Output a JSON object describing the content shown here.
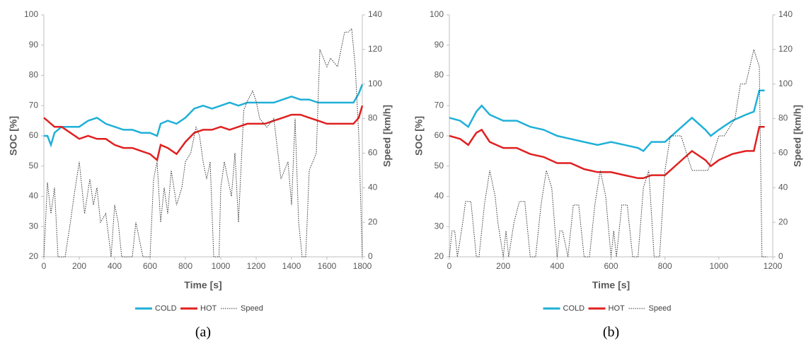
{
  "chart_data": [
    {
      "type": "line",
      "label": "(a)",
      "xlabel": "Time [s]",
      "ylabel": "SOC [%]",
      "y2label": "Speed [km/h]",
      "xlim": [
        0,
        1800
      ],
      "xticks": [
        0,
        200,
        400,
        600,
        800,
        1000,
        1200,
        1400,
        1600,
        1800
      ],
      "ylim": [
        20,
        100
      ],
      "yticks": [
        20,
        30,
        40,
        50,
        60,
        70,
        80,
        90,
        100
      ],
      "y2lim": [
        0,
        140
      ],
      "y2ticks": [
        0,
        20,
        40,
        60,
        80,
        100,
        120,
        140
      ],
      "series": [
        {
          "name": "COLD",
          "color": "#1fb0d8",
          "dashed": false,
          "x": [
            0,
            20,
            40,
            60,
            80,
            100,
            150,
            200,
            250,
            300,
            350,
            400,
            450,
            500,
            550,
            600,
            640,
            660,
            700,
            750,
            800,
            850,
            900,
            950,
            1000,
            1050,
            1100,
            1150,
            1200,
            1250,
            1300,
            1350,
            1400,
            1450,
            1500,
            1550,
            1600,
            1650,
            1700,
            1750,
            1780,
            1800
          ],
          "values": [
            60,
            60,
            57,
            61,
            62,
            63,
            63,
            63,
            65,
            66,
            64,
            63,
            62,
            62,
            61,
            61,
            60,
            64,
            65,
            64,
            66,
            69,
            70,
            69,
            70,
            71,
            70,
            71,
            71,
            71,
            71,
            72,
            73,
            72,
            72,
            71,
            71,
            71,
            71,
            71,
            74,
            77
          ]
        },
        {
          "name": "HOT",
          "color": "#e02020",
          "dashed": false,
          "x": [
            0,
            20,
            40,
            60,
            80,
            100,
            150,
            200,
            250,
            300,
            350,
            400,
            450,
            500,
            550,
            600,
            640,
            660,
            700,
            750,
            800,
            850,
            900,
            950,
            1000,
            1050,
            1100,
            1150,
            1200,
            1250,
            1300,
            1350,
            1400,
            1450,
            1500,
            1550,
            1600,
            1650,
            1700,
            1750,
            1780,
            1800
          ],
          "values": [
            66,
            65,
            64,
            63,
            63,
            63,
            61,
            59,
            60,
            59,
            59,
            57,
            56,
            56,
            55,
            54,
            52,
            57,
            56,
            54,
            58,
            61,
            62,
            62,
            63,
            62,
            63,
            64,
            64,
            64,
            65,
            66,
            67,
            67,
            66,
            65,
            64,
            64,
            64,
            64,
            66,
            70
          ]
        },
        {
          "name": "Speed",
          "color": "#333333",
          "dashed": true,
          "axis": "y2",
          "x": [
            0,
            20,
            40,
            60,
            80,
            100,
            120,
            150,
            170,
            200,
            230,
            260,
            280,
            300,
            320,
            350,
            380,
            400,
            420,
            440,
            460,
            500,
            520,
            540,
            560,
            580,
            600,
            620,
            640,
            660,
            680,
            700,
            720,
            750,
            780,
            800,
            830,
            860,
            880,
            900,
            920,
            940,
            960,
            990,
            1000,
            1020,
            1060,
            1080,
            1100,
            1130,
            1150,
            1180,
            1200,
            1220,
            1260,
            1300,
            1340,
            1380,
            1400,
            1420,
            1440,
            1460,
            1480,
            1500,
            1540,
            1560,
            1600,
            1620,
            1660,
            1700,
            1720,
            1740,
            1760,
            1780,
            1800
          ],
          "values": [
            0,
            43,
            25,
            40,
            0,
            0,
            0,
            20,
            35,
            55,
            25,
            45,
            30,
            40,
            20,
            25,
            0,
            30,
            20,
            0,
            0,
            0,
            20,
            10,
            0,
            0,
            0,
            45,
            55,
            20,
            40,
            25,
            50,
            30,
            40,
            55,
            60,
            75,
            70,
            55,
            45,
            55,
            0,
            0,
            40,
            55,
            35,
            60,
            20,
            85,
            90,
            96,
            90,
            80,
            75,
            80,
            45,
            55,
            30,
            80,
            20,
            0,
            0,
            50,
            60,
            120,
            110,
            115,
            110,
            130,
            130,
            132,
            110,
            70,
            0
          ]
        }
      ]
    },
    {
      "type": "line",
      "label": "(b)",
      "xlabel": "Time [s]",
      "ylabel": "SOC [%]",
      "y2label": "Speed [km/h]",
      "xlim": [
        0,
        1200
      ],
      "xticks": [
        0,
        200,
        400,
        600,
        800,
        1000,
        1200
      ],
      "ylim": [
        20,
        100
      ],
      "yticks": [
        20,
        30,
        40,
        50,
        60,
        70,
        80,
        90,
        100
      ],
      "y2lim": [
        0,
        140
      ],
      "y2ticks": [
        0,
        20,
        40,
        60,
        80,
        100,
        120,
        140
      ],
      "series": [
        {
          "name": "COLD",
          "color": "#1fb0d8",
          "dashed": false,
          "x": [
            0,
            40,
            70,
            100,
            120,
            150,
            200,
            250,
            300,
            350,
            400,
            450,
            500,
            550,
            600,
            650,
            700,
            720,
            750,
            800,
            850,
            900,
            950,
            970,
            1000,
            1050,
            1100,
            1130,
            1150,
            1170
          ],
          "values": [
            66,
            65,
            63,
            68,
            70,
            67,
            65,
            65,
            63,
            62,
            60,
            59,
            58,
            57,
            58,
            57,
            56,
            55,
            58,
            58,
            62,
            66,
            62,
            60,
            62,
            65,
            67,
            68,
            75,
            75
          ]
        },
        {
          "name": "HOT",
          "color": "#e02020",
          "dashed": false,
          "x": [
            0,
            40,
            70,
            100,
            120,
            150,
            200,
            250,
            300,
            350,
            400,
            450,
            500,
            550,
            600,
            650,
            700,
            720,
            750,
            800,
            850,
            900,
            950,
            970,
            1000,
            1050,
            1100,
            1130,
            1150,
            1170
          ],
          "values": [
            60,
            59,
            57,
            61,
            62,
            58,
            56,
            56,
            54,
            53,
            51,
            51,
            49,
            48,
            48,
            47,
            46,
            46,
            47,
            47,
            51,
            55,
            52,
            50,
            52,
            54,
            55,
            55,
            63,
            63
          ]
        },
        {
          "name": "Speed",
          "color": "#333333",
          "dashed": true,
          "axis": "y2",
          "x": [
            0,
            10,
            20,
            30,
            50,
            60,
            80,
            100,
            110,
            130,
            150,
            170,
            180,
            200,
            210,
            220,
            240,
            260,
            280,
            300,
            320,
            340,
            360,
            380,
            400,
            410,
            420,
            440,
            460,
            480,
            500,
            520,
            540,
            560,
            580,
            600,
            610,
            620,
            640,
            660,
            680,
            700,
            720,
            740,
            760,
            780,
            800,
            820,
            860,
            880,
            900,
            920,
            960,
            1000,
            1020,
            1060,
            1080,
            1100,
            1130,
            1150,
            1160,
            1180
          ],
          "values": [
            0,
            15,
            15,
            0,
            20,
            32,
            32,
            0,
            0,
            30,
            50,
            35,
            20,
            0,
            15,
            0,
            20,
            32,
            32,
            0,
            0,
            30,
            50,
            40,
            0,
            15,
            15,
            0,
            30,
            30,
            0,
            0,
            30,
            50,
            35,
            0,
            15,
            0,
            30,
            30,
            0,
            0,
            40,
            50,
            0,
            0,
            50,
            70,
            70,
            60,
            50,
            50,
            50,
            70,
            70,
            80,
            100,
            100,
            120,
            110,
            0,
            0
          ]
        }
      ]
    }
  ]
}
